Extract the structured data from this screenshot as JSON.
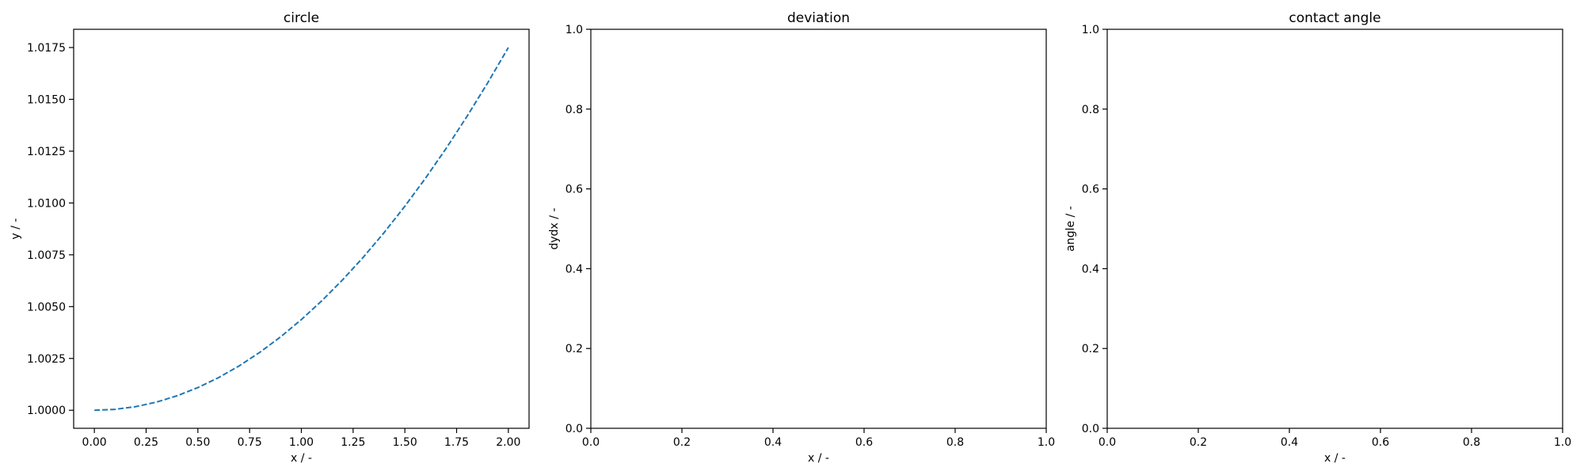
{
  "colors": {
    "background": "#ffffff",
    "axes": "#000000",
    "series": "#1f77b4"
  },
  "chart_data": [
    {
      "type": "line",
      "title": "circle",
      "xlabel": "x / -",
      "ylabel": "y / -",
      "xlim": [
        -0.1,
        2.1
      ],
      "ylim": [
        0.99913,
        1.01838
      ],
      "xticks": [
        0.0,
        0.25,
        0.5,
        0.75,
        1.0,
        1.25,
        1.5,
        1.75,
        2.0
      ],
      "xtick_labels": [
        "0.00",
        "0.25",
        "0.50",
        "0.75",
        "1.00",
        "1.25",
        "1.50",
        "1.75",
        "2.00"
      ],
      "yticks": [
        1.0,
        1.0025,
        1.005,
        1.0075,
        1.01,
        1.0125,
        1.015,
        1.0175
      ],
      "ytick_labels": [
        "1.0000",
        "1.0025",
        "1.0050",
        "1.0075",
        "1.0100",
        "1.0125",
        "1.0150",
        "1.0175"
      ],
      "grid": false,
      "series": [
        {
          "line_style": "dashed",
          "color": "#1f77b4",
          "x": [
            0.0,
            0.1,
            0.2,
            0.3,
            0.4,
            0.5,
            0.6,
            0.7,
            0.8,
            0.9,
            1.0,
            1.1,
            1.2,
            1.3,
            1.4,
            1.5,
            1.6,
            1.7,
            1.8,
            1.9,
            2.0
          ],
          "y": [
            1.0,
            1.000044,
            1.000175,
            1.000393,
            1.0007,
            1.001093,
            1.001575,
            1.002143,
            1.0028,
            1.003543,
            1.004375,
            1.005293,
            1.0063,
            1.007393,
            1.008575,
            1.009843,
            1.0112,
            1.012643,
            1.014175,
            1.015793,
            1.0175
          ]
        }
      ]
    },
    {
      "type": "line",
      "title": "deviation",
      "xlabel": "x / -",
      "ylabel": "dydx / -",
      "xlim": [
        0,
        1
      ],
      "ylim": [
        0,
        1
      ],
      "xticks": [
        0,
        0.2,
        0.4,
        0.6,
        0.8,
        1.0
      ],
      "xtick_labels": [
        "0.0",
        "0.2",
        "0.4",
        "0.6",
        "0.8",
        "1.0"
      ],
      "yticks": [
        0,
        0.2,
        0.4,
        0.6,
        0.8,
        1.0
      ],
      "ytick_labels": [
        "0.0",
        "0.2",
        "0.4",
        "0.6",
        "0.8",
        "1.0"
      ],
      "grid": false,
      "series": []
    },
    {
      "type": "line",
      "title": "contact angle",
      "xlabel": "x / -",
      "ylabel": "angle / -",
      "xlim": [
        0,
        1
      ],
      "ylim": [
        0,
        1
      ],
      "xticks": [
        0,
        0.2,
        0.4,
        0.6,
        0.8,
        1.0
      ],
      "xtick_labels": [
        "0.0",
        "0.2",
        "0.4",
        "0.6",
        "0.8",
        "1.0"
      ],
      "yticks": [
        0,
        0.2,
        0.4,
        0.6,
        0.8,
        1.0
      ],
      "ytick_labels": [
        "0.0",
        "0.2",
        "0.4",
        "0.6",
        "0.8",
        "1.0"
      ],
      "grid": false,
      "series": []
    }
  ]
}
